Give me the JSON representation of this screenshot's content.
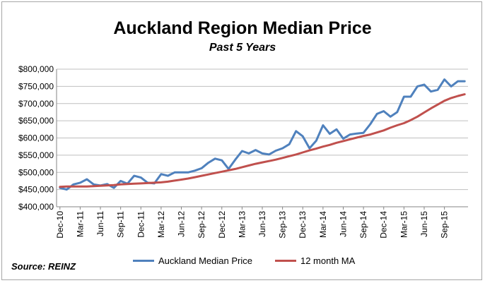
{
  "title": "Auckland Region Median Price",
  "subtitle": "Past 5 Years",
  "source": "Source: REINZ",
  "colors": {
    "median": "#4f81bd",
    "ma": "#c0504d",
    "grid": "#bfbfbf",
    "axis": "#868686"
  },
  "chart_data": {
    "type": "line",
    "title": "Auckland Region Median Price",
    "subtitle": "Past 5 Years",
    "xlabel": "",
    "ylabel": "",
    "ylim": [
      400000,
      800000
    ],
    "yticks": [
      400000,
      450000,
      500000,
      550000,
      600000,
      650000,
      700000,
      750000,
      800000
    ],
    "ytick_labels": [
      "$400,000",
      "$450,000",
      "$500,000",
      "$550,000",
      "$600,000",
      "$650,000",
      "$700,000",
      "$750,000",
      "$800,000"
    ],
    "x": [
      "Dec-10",
      "Jan-11",
      "Feb-11",
      "Mar-11",
      "Apr-11",
      "May-11",
      "Jun-11",
      "Jul-11",
      "Aug-11",
      "Sep-11",
      "Oct-11",
      "Nov-11",
      "Dec-11",
      "Jan-12",
      "Feb-12",
      "Mar-12",
      "Apr-12",
      "May-12",
      "Jun-12",
      "Jul-12",
      "Aug-12",
      "Sep-12",
      "Oct-12",
      "Nov-12",
      "Dec-12",
      "Jan-13",
      "Feb-13",
      "Mar-13",
      "Apr-13",
      "May-13",
      "Jun-13",
      "Jul-13",
      "Aug-13",
      "Sep-13",
      "Oct-13",
      "Nov-13",
      "Dec-13",
      "Jan-14",
      "Feb-14",
      "Mar-14",
      "Apr-14",
      "May-14",
      "Jun-14",
      "Jul-14",
      "Aug-14",
      "Sep-14",
      "Oct-14",
      "Nov-14",
      "Dec-14",
      "Jan-15",
      "Feb-15",
      "Mar-15",
      "Apr-15",
      "May-15",
      "Jun-15",
      "Jul-15",
      "Aug-15",
      "Sep-15",
      "Oct-15",
      "Nov-15",
      "Dec-15"
    ],
    "xtick_labels": [
      "Dec-10",
      "Mar-11",
      "Jun-11",
      "Sep-11",
      "Dec-11",
      "Mar-12",
      "Jun-12",
      "Sep-12",
      "Dec-12",
      "Mar-13",
      "Jun-13",
      "Sep-13",
      "Dec-13",
      "Mar-14",
      "Jun-14",
      "Sep-14",
      "Dec-14",
      "Mar-15",
      "Jun-15",
      "Sep-15"
    ],
    "grid": true,
    "legend_position": "bottom",
    "series": [
      {
        "name": "Auckland Median Price",
        "values": [
          455000,
          450000,
          465000,
          470000,
          480000,
          465000,
          462000,
          466000,
          455000,
          475000,
          467000,
          490000,
          485000,
          470000,
          468000,
          495000,
          490000,
          500000,
          500000,
          500000,
          505000,
          512000,
          528000,
          540000,
          535000,
          510000,
          537000,
          562000,
          555000,
          565000,
          555000,
          552000,
          563000,
          570000,
          582000,
          620000,
          605000,
          570000,
          592000,
          637000,
          612000,
          625000,
          598000,
          610000,
          613000,
          615000,
          640000,
          670000,
          678000,
          662000,
          675000,
          720000,
          720000,
          750000,
          755000,
          735000,
          740000,
          770000,
          750000,
          765000,
          765000
        ]
      },
      {
        "name": "12 month MA",
        "values": [
          458000,
          459000,
          459000,
          459000,
          459000,
          460000,
          461000,
          462000,
          463000,
          465000,
          466000,
          467000,
          468000,
          469000,
          470000,
          471000,
          473000,
          476000,
          479000,
          482000,
          486000,
          490000,
          494000,
          498000,
          502000,
          506000,
          510000,
          515000,
          520000,
          525000,
          529000,
          533000,
          537000,
          542000,
          547000,
          552000,
          558000,
          564000,
          569000,
          575000,
          580000,
          586000,
          591000,
          596000,
          601000,
          606000,
          610000,
          616000,
          622000,
          630000,
          637000,
          643000,
          652000,
          662000,
          674000,
          686000,
          697000,
          708000,
          716000,
          722000,
          727000
        ]
      }
    ]
  }
}
